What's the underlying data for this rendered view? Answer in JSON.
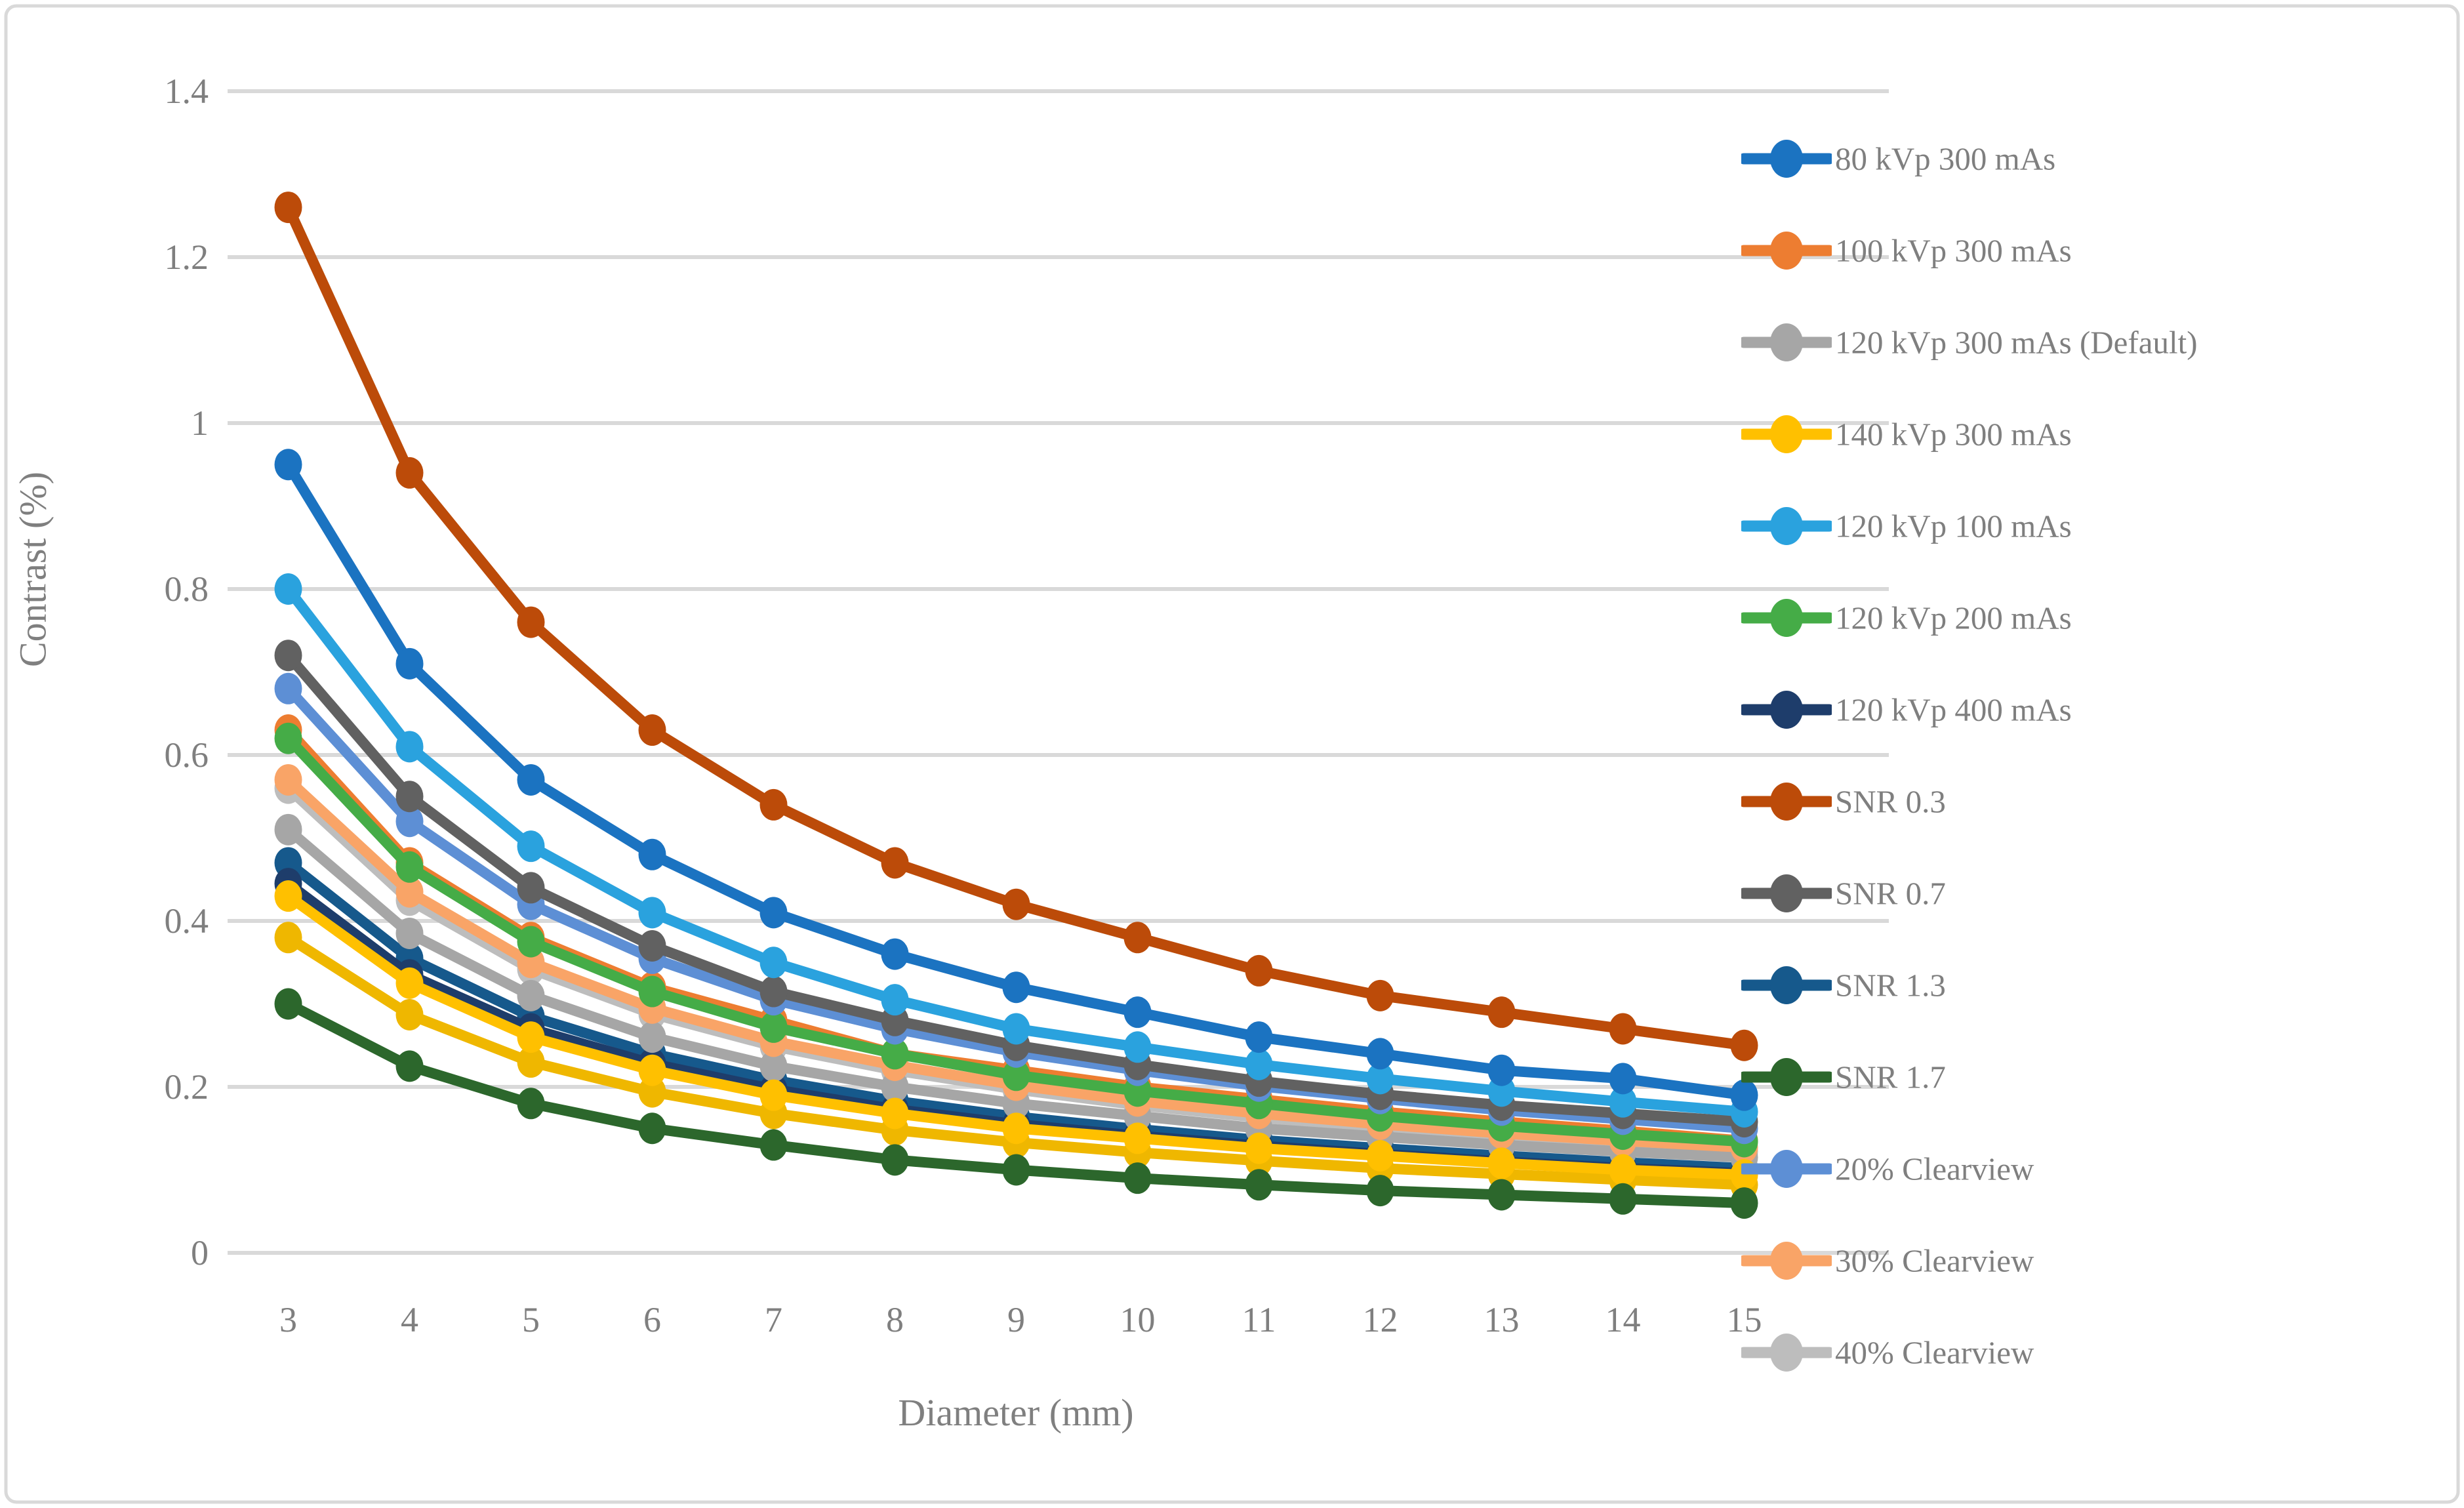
{
  "figure": {
    "border_color": "#d9d9d9",
    "background": "#ffffff",
    "text_color": "#7f7f7f",
    "gridline_color": "#d9d9d9"
  },
  "chart_data": {
    "type": "line",
    "title": "",
    "xlabel": "Diameter (mm)",
    "ylabel": "Contrast (%)",
    "x": [
      3,
      4,
      5,
      6,
      7,
      8,
      9,
      10,
      11,
      12,
      13,
      14,
      15
    ],
    "x_tick_labels": [
      "3",
      "4",
      "5",
      "6",
      "7",
      "8",
      "9",
      "10",
      "11",
      "12",
      "13",
      "14",
      "15"
    ],
    "y_ticks": [
      0,
      0.2,
      0.4,
      0.6,
      0.8,
      1,
      1.2,
      1.4
    ],
    "y_tick_labels": [
      "0",
      "0.2",
      "0.4",
      "0.6",
      "0.8",
      "1",
      "1.2",
      "1.4"
    ],
    "ylim": [
      0,
      1.4
    ],
    "grid": "horizontal",
    "legend_position": "right-overlay",
    "series": [
      {
        "name": "SNR 1.3",
        "color": "#16598c",
        "values": [
          0.47,
          0.355,
          0.285,
          0.24,
          0.208,
          0.183,
          0.164,
          0.149,
          0.136,
          0.126,
          0.117,
          0.109,
          0.102
        ]
      },
      {
        "name": "120 kVp 400 mAs",
        "color": "#1e3d6b",
        "values": [
          0.445,
          0.335,
          0.27,
          0.228,
          0.197,
          0.173,
          0.155,
          0.141,
          0.129,
          0.119,
          0.11,
          0.102,
          0.096
        ]
      },
      {
        "name": "40% Clearview",
        "color": "#bdbdbd",
        "values": [
          0.56,
          0.425,
          0.342,
          0.288,
          0.249,
          0.22,
          0.197,
          0.178,
          0.163,
          0.15,
          0.14,
          0.131,
          0.122
        ]
      },
      {
        "name": "120 kVp 300 mAs (Default)",
        "color": "#a6a6a6",
        "values": [
          0.51,
          0.385,
          0.31,
          0.26,
          0.225,
          0.2,
          0.18,
          0.165,
          0.15,
          0.14,
          0.13,
          0.122,
          0.115
        ]
      },
      {
        "name": "30% Clearview",
        "color": "#f9a467",
        "values": [
          0.57,
          0.435,
          0.35,
          0.295,
          0.255,
          0.226,
          0.202,
          0.183,
          0.168,
          0.155,
          0.144,
          0.135,
          0.127
        ]
      },
      {
        "name": "100 kVp 300 mAs",
        "color": "#ed7d31",
        "values": [
          0.63,
          0.47,
          0.38,
          0.32,
          0.28,
          0.24,
          0.22,
          0.2,
          0.185,
          0.17,
          0.158,
          0.147,
          0.135
        ]
      },
      {
        "name": "120 kVp 200 mAs",
        "color": "#45ac47",
        "values": [
          0.62,
          0.465,
          0.375,
          0.315,
          0.272,
          0.24,
          0.214,
          0.195,
          0.18,
          0.165,
          0.153,
          0.143,
          0.134
        ]
      },
      {
        "name": "20% Clearview",
        "color": "#5d8fd5",
        "values": [
          0.68,
          0.52,
          0.42,
          0.355,
          0.305,
          0.27,
          0.242,
          0.22,
          0.201,
          0.186,
          0.172,
          0.161,
          0.15
        ]
      },
      {
        "name": "SNR 0.7",
        "color": "#616161",
        "values": [
          0.72,
          0.55,
          0.44,
          0.37,
          0.315,
          0.28,
          0.25,
          0.227,
          0.207,
          0.191,
          0.178,
          0.168,
          0.158
        ]
      },
      {
        "name": "120 kVp 100 mAs",
        "color": "#2aa2de",
        "values": [
          0.8,
          0.61,
          0.49,
          0.41,
          0.35,
          0.305,
          0.27,
          0.248,
          0.227,
          0.21,
          0.195,
          0.182,
          0.17
        ]
      },
      {
        "name": "80 kVp 300 mAs",
        "color": "#1b73c1",
        "values": [
          0.95,
          0.71,
          0.57,
          0.48,
          0.41,
          0.36,
          0.32,
          0.29,
          0.26,
          0.24,
          0.22,
          0.21,
          0.19
        ]
      },
      {
        "name": "",
        "color": "#efb700",
        "values": [
          0.38,
          0.287,
          0.23,
          0.194,
          0.168,
          0.148,
          0.133,
          0.121,
          0.111,
          0.102,
          0.095,
          0.088,
          0.082
        ]
      },
      {
        "name": "140 kVp 300 mAs",
        "color": "#ffc000",
        "values": [
          0.43,
          0.325,
          0.26,
          0.22,
          0.19,
          0.168,
          0.15,
          0.138,
          0.126,
          0.117,
          0.108,
          0.1,
          0.094
        ]
      },
      {
        "name": "SNR 1.7",
        "color": "#2c672c",
        "values": [
          0.3,
          0.225,
          0.18,
          0.15,
          0.13,
          0.112,
          0.1,
          0.09,
          0.082,
          0.075,
          0.07,
          0.065,
          0.06
        ]
      },
      {
        "name": "SNR 0.3",
        "color": "#bc4b09",
        "values": [
          1.26,
          0.94,
          0.76,
          0.63,
          0.54,
          0.47,
          0.42,
          0.38,
          0.34,
          0.31,
          0.29,
          0.27,
          0.25
        ]
      }
    ],
    "legend_entries": [
      {
        "label": "80 kVp 300 mAs",
        "color": "#1b73c1"
      },
      {
        "label": "100 kVp 300 mAs",
        "color": "#ed7d31"
      },
      {
        "label": "120 kVp 300 mAs (Default)",
        "color": "#a6a6a6"
      },
      {
        "label": "140 kVp 300 mAs",
        "color": "#ffc000"
      },
      {
        "label": "120 kVp 100 mAs",
        "color": "#2aa2de"
      },
      {
        "label": "120 kVp 200 mAs",
        "color": "#45ac47"
      },
      {
        "label": "120 kVp 400 mAs",
        "color": "#1e3d6b"
      },
      {
        "label": "SNR 0.3",
        "color": "#bc4b09"
      },
      {
        "label": "SNR 0.7",
        "color": "#616161"
      },
      {
        "label": "SNR 1.3",
        "color": "#16598c"
      },
      {
        "label": "SNR 1.7",
        "color": "#2c672c"
      },
      {
        "label": "20% Clearview",
        "color": "#5d8fd5"
      },
      {
        "label": "30% Clearview",
        "color": "#f9a467"
      },
      {
        "label": "40% Clearview",
        "color": "#bdbdbd"
      }
    ]
  }
}
